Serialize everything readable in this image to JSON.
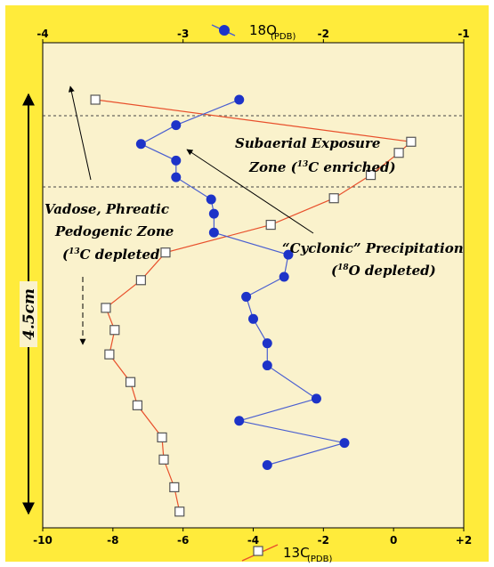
{
  "chart_data": {
    "type": "line",
    "top_axis": {
      "title_main": "18O",
      "title_sub": "(PDB)",
      "range": [
        -4,
        -1
      ],
      "ticks": [
        "-4",
        "-3",
        "-2",
        "-1"
      ],
      "tick_values": [
        -4,
        -3,
        -2,
        -1
      ]
    },
    "bottom_axis": {
      "title_main": "13C",
      "title_sub": "(PDB)",
      "range": [
        -10,
        2
      ],
      "ticks": [
        "-10",
        "-8",
        "-6",
        "-4",
        "-2",
        "0",
        "+2"
      ],
      "tick_values": [
        -10,
        -8,
        -6,
        -4,
        -2,
        0,
        2
      ]
    },
    "depth_label": "4.5cm",
    "series": [
      {
        "name": "13C",
        "axis": "bottom",
        "marker": "open-square",
        "line_color": "#e8502c",
        "points": [
          {
            "d": 0.0,
            "v": -8.5
          },
          {
            "d": 0.38,
            "v": 0.5
          },
          {
            "d": 0.48,
            "v": 0.15
          },
          {
            "d": 0.68,
            "v": -0.65
          },
          {
            "d": 0.89,
            "v": -1.7
          },
          {
            "d": 1.13,
            "v": -3.5
          },
          {
            "d": 1.38,
            "v": -6.5
          },
          {
            "d": 1.63,
            "v": -7.2
          },
          {
            "d": 1.88,
            "v": -8.2
          },
          {
            "d": 2.08,
            "v": -7.95
          },
          {
            "d": 2.3,
            "v": -8.1
          },
          {
            "d": 2.55,
            "v": -7.5
          },
          {
            "d": 2.76,
            "v": -7.3
          },
          {
            "d": 3.05,
            "v": -6.6
          },
          {
            "d": 3.25,
            "v": -6.55
          },
          {
            "d": 3.5,
            "v": -6.25
          },
          {
            "d": 3.72,
            "v": -6.1
          }
        ]
      },
      {
        "name": "18O",
        "axis": "top",
        "marker": "filled-circle",
        "line_color": "#4a5fd0",
        "points": [
          {
            "d": 0.0,
            "v": -2.6
          },
          {
            "d": 0.23,
            "v": -3.05
          },
          {
            "d": 0.4,
            "v": -3.3
          },
          {
            "d": 0.55,
            "v": -3.05
          },
          {
            "d": 0.7,
            "v": -3.05
          },
          {
            "d": 0.9,
            "v": -2.8
          },
          {
            "d": 1.03,
            "v": -2.78
          },
          {
            "d": 1.2,
            "v": -2.78
          },
          {
            "d": 1.4,
            "v": -2.25
          },
          {
            "d": 1.6,
            "v": -2.28
          },
          {
            "d": 1.78,
            "v": -2.55
          },
          {
            "d": 1.98,
            "v": -2.5
          },
          {
            "d": 2.2,
            "v": -2.4
          },
          {
            "d": 2.4,
            "v": -2.4
          },
          {
            "d": 2.7,
            "v": -2.05
          },
          {
            "d": 2.9,
            "v": -2.6
          },
          {
            "d": 3.1,
            "v": -1.85
          },
          {
            "d": 3.3,
            "v": -2.4
          }
        ]
      }
    ],
    "annotations": {
      "subaerial_1": "Subaerial Exposure",
      "subaerial_2_a": "Zone (",
      "subaerial_2_sup": "13",
      "subaerial_2_b": "C enriched)",
      "vadose_1": "Vadose, Phreatic",
      "vadose_2": "Pedogenic Zone",
      "vadose_3_a": "(",
      "vadose_3_sup": "13",
      "vadose_3_b": "C depleted",
      "cyclonic_1": "“Cyclonic” Precipitation",
      "cyclonic_2_a": "(",
      "cyclonic_2_sup": "18",
      "cyclonic_2_b": "O depleted)"
    },
    "colors": {
      "frame": "#ffeb3b",
      "plot_bg": "#faf2cc"
    }
  }
}
